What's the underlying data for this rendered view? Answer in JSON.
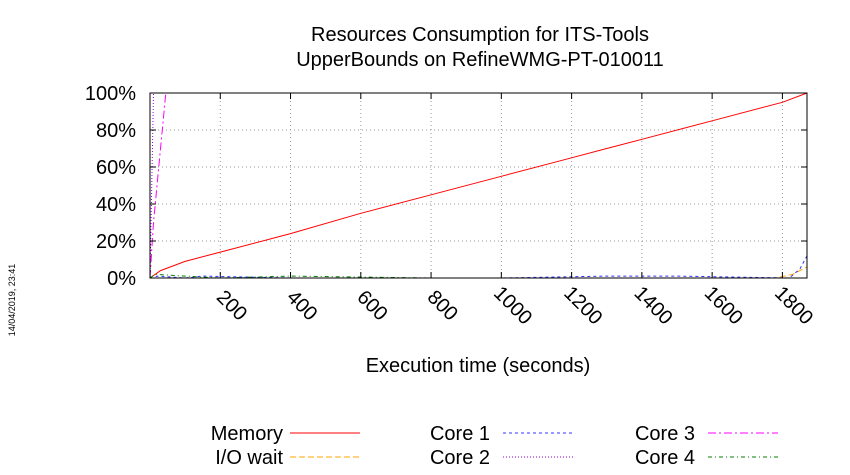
{
  "chart_data": {
    "type": "line",
    "title": [
      "Resources Consumption for ITS-Tools",
      "UpperBounds on RefineWMG-PT-010011"
    ],
    "xlabel": "Execution time (seconds)",
    "ylabel": "",
    "side_label": "14/04/2019, 23:41",
    "xlim": [
      0,
      1870
    ],
    "ylim": [
      0,
      100
    ],
    "x_ticks": [
      200,
      400,
      600,
      800,
      1000,
      1200,
      1400,
      1600,
      1800
    ],
    "y_ticks": [
      0,
      20,
      40,
      60,
      80,
      100
    ],
    "y_tick_labels": [
      "0%",
      "20%",
      "40%",
      "60%",
      "80%",
      "100%"
    ],
    "grid": true,
    "legend_position": "bottom",
    "series": [
      {
        "name": "Memory",
        "color": "#ff0000",
        "dash": "",
        "x": [
          0,
          30,
          100,
          200,
          400,
          600,
          800,
          1000,
          1200,
          1300,
          1400,
          1600,
          1800,
          1870
        ],
        "y": [
          0,
          4,
          9,
          14,
          24,
          35,
          45,
          55,
          65,
          70,
          75,
          85,
          95,
          100
        ]
      },
      {
        "name": "I/O wait",
        "color": "#ffa500",
        "dash": "6,3",
        "x": [
          0,
          10,
          1780,
          1830,
          1870
        ],
        "y": [
          0,
          0,
          0,
          2,
          6
        ]
      },
      {
        "name": "Core 1",
        "color": "#3333ff",
        "dash": "3,3",
        "x": [
          0,
          10,
          20,
          100,
          150,
          400,
          1000,
          1300,
          1500,
          1820,
          1850,
          1870
        ],
        "y": [
          0,
          0,
          1,
          0,
          1,
          0,
          0,
          1,
          1,
          0,
          5,
          12
        ]
      },
      {
        "name": "Core 2",
        "color": "#9400d3",
        "dash": "1,2",
        "x": [
          0,
          10,
          1870
        ],
        "y": [
          0,
          100,
          100
        ]
      },
      {
        "name": "Core 3",
        "color": "#ff00ff",
        "dash": "8,3,2,3",
        "x": [
          0,
          10,
          45,
          1870
        ],
        "y": [
          0,
          30,
          100,
          100
        ]
      },
      {
        "name": "Core 4",
        "color": "#008000",
        "dash": "4,3,1,3",
        "x": [
          0,
          15,
          100,
          200,
          400,
          800,
          1200,
          1600,
          1870
        ],
        "y": [
          0,
          2,
          1,
          0,
          1,
          0,
          0,
          0,
          0
        ]
      }
    ]
  }
}
